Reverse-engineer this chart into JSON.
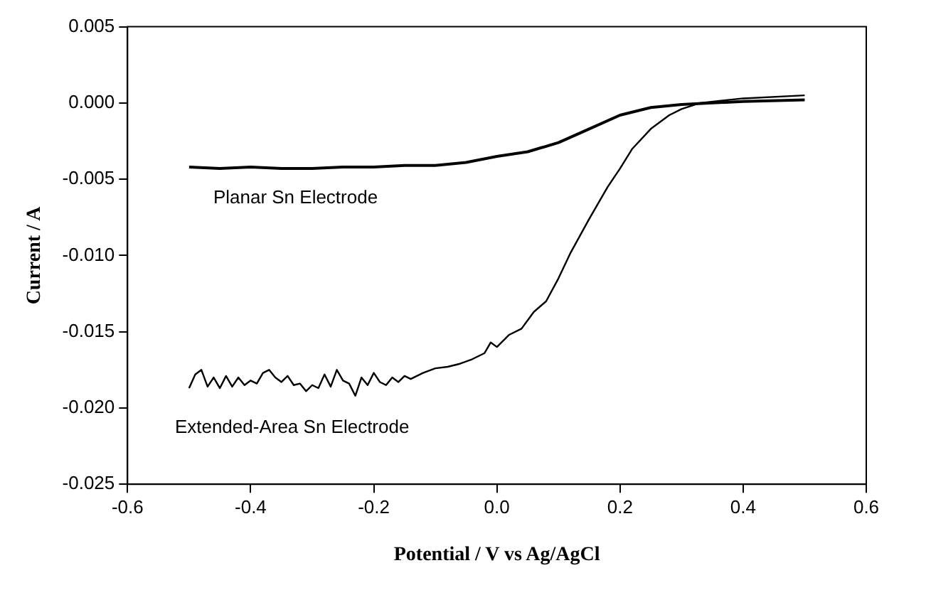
{
  "chart_data": {
    "type": "line",
    "xlabel": "Potential / V vs Ag/AgCl",
    "ylabel": "Current / A",
    "xlim": [
      -0.6,
      0.6
    ],
    "xticks": [
      {
        "value": -0.6,
        "label": "-0.6"
      },
      {
        "value": -0.4,
        "label": "-0.4"
      },
      {
        "value": -0.2,
        "label": "-0.2"
      },
      {
        "value": 0,
        "label": "0.0"
      },
      {
        "value": 0.2,
        "label": "0.2"
      },
      {
        "value": 0.4,
        "label": "0.4"
      },
      {
        "value": 0.6,
        "label": "0.6"
      }
    ],
    "ylim": [
      -0.025,
      0.005
    ],
    "yticks": [
      {
        "value": -0.025,
        "label": "-0.025"
      },
      {
        "value": -0.02,
        "label": "-0.020"
      },
      {
        "value": -0.015,
        "label": "-0.015"
      },
      {
        "value": -0.01,
        "label": "-0.010"
      },
      {
        "value": -0.005,
        "label": "-0.005"
      },
      {
        "value": 0,
        "label": "0.000"
      },
      {
        "value": 0.005,
        "label": "0.005"
      }
    ],
    "grid": false,
    "legend": false,
    "marker": "none",
    "line_style": "solid",
    "series": [
      {
        "name": "Planar Sn Electrode",
        "color": "#000000",
        "x": [
          -0.5,
          -0.45,
          -0.4,
          -0.35,
          -0.3,
          -0.25,
          -0.2,
          -0.15,
          -0.1,
          -0.05,
          0,
          0.05,
          0.1,
          0.15,
          0.2,
          0.25,
          0.3,
          0.35,
          0.4,
          0.5
        ],
        "values": [
          -0.0042,
          -0.0043,
          -0.0042,
          -0.0043,
          -0.0043,
          -0.0042,
          -0.0042,
          -0.0041,
          -0.0041,
          -0.0039,
          -0.0035,
          -0.0032,
          -0.0026,
          -0.0017,
          -0.0008,
          -0.0003,
          -0.0001,
          0,
          0.0001,
          0.0002
        ]
      },
      {
        "name": "Extended-Area Sn Electrode",
        "color": "#000000",
        "x": [
          -0.5,
          -0.49,
          -0.48,
          -0.47,
          -0.46,
          -0.45,
          -0.44,
          -0.43,
          -0.42,
          -0.41,
          -0.4,
          -0.39,
          -0.38,
          -0.37,
          -0.36,
          -0.35,
          -0.34,
          -0.33,
          -0.32,
          -0.31,
          -0.3,
          -0.29,
          -0.28,
          -0.27,
          -0.26,
          -0.25,
          -0.24,
          -0.23,
          -0.22,
          -0.21,
          -0.2,
          -0.19,
          -0.18,
          -0.17,
          -0.16,
          -0.15,
          -0.14,
          -0.12,
          -0.1,
          -0.08,
          -0.06,
          -0.04,
          -0.02,
          -0.01,
          0,
          0.02,
          0.04,
          0.06,
          0.08,
          0.1,
          0.12,
          0.15,
          0.18,
          0.2,
          0.22,
          0.25,
          0.28,
          0.3,
          0.33,
          0.4,
          0.5
        ],
        "values": [
          -0.0187,
          -0.0178,
          -0.0175,
          -0.0186,
          -0.018,
          -0.0187,
          -0.0179,
          -0.0186,
          -0.018,
          -0.0185,
          -0.0182,
          -0.0184,
          -0.0177,
          -0.0175,
          -0.018,
          -0.0183,
          -0.0179,
          -0.0185,
          -0.0184,
          -0.0189,
          -0.0185,
          -0.0187,
          -0.0178,
          -0.0186,
          -0.0175,
          -0.0182,
          -0.0184,
          -0.0192,
          -0.018,
          -0.0185,
          -0.0177,
          -0.0183,
          -0.0185,
          -0.018,
          -0.0183,
          -0.0179,
          -0.0181,
          -0.0177,
          -0.0174,
          -0.0173,
          -0.0171,
          -0.0168,
          -0.0164,
          -0.0157,
          -0.016,
          -0.0152,
          -0.0148,
          -0.0137,
          -0.013,
          -0.0115,
          -0.0098,
          -0.0076,
          -0.0055,
          -0.0043,
          -0.003,
          -0.0017,
          -0.0008,
          -0.0004,
          0,
          0.0003,
          0.0005
        ]
      }
    ]
  }
}
